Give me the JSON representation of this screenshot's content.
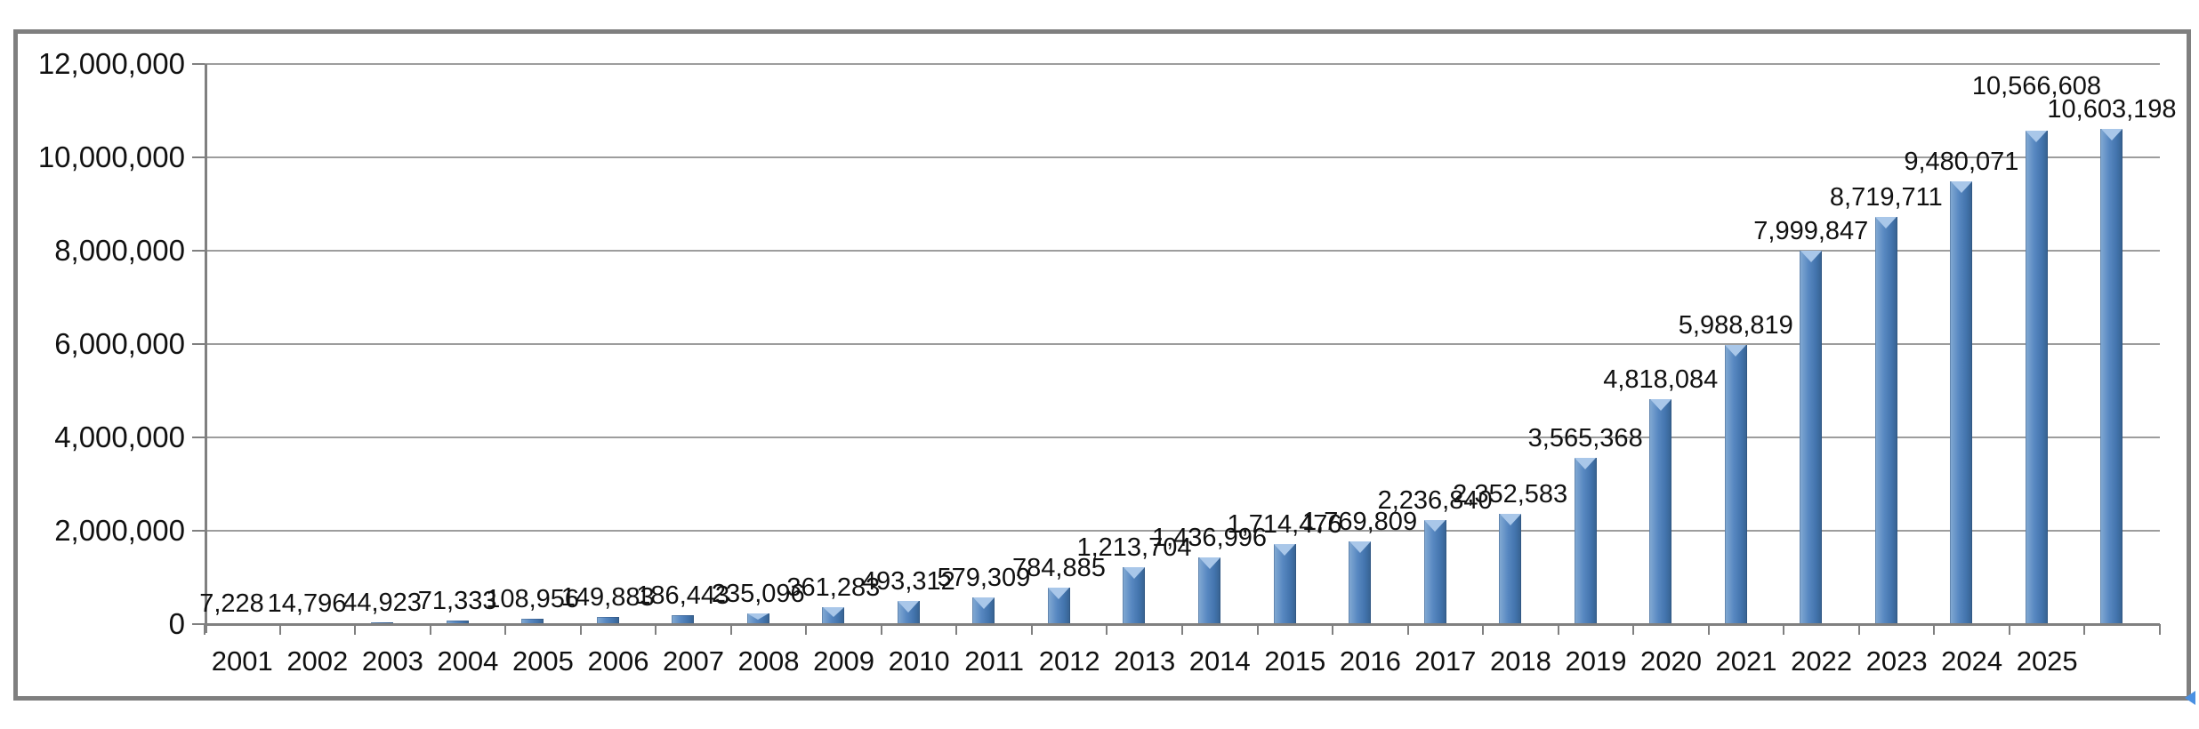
{
  "chart_data": {
    "type": "bar",
    "title": "",
    "xlabel": "",
    "ylabel": "",
    "legend": "none",
    "grid": true,
    "ylim": [
      0,
      12000000
    ],
    "ytick_interval": 2000000,
    "ytick_labels": [
      "0",
      "2,000,000",
      "4,000,000",
      "6,000,000",
      "8,000,000",
      "10,000,000",
      "12,000,000"
    ],
    "categories": [
      "2001",
      "2002",
      "2003",
      "2004",
      "2005",
      "2006",
      "2007",
      "2008",
      "2009",
      "2010",
      "2011",
      "2012",
      "2013",
      "2014",
      "2015",
      "2016",
      "2017",
      "2018",
      "2019",
      "2020",
      "2021",
      "2022",
      "2023",
      "2024",
      "2025",
      ""
    ],
    "values": [
      7228,
      14796,
      44923,
      71333,
      108956,
      149883,
      186443,
      235096,
      361283,
      493312,
      579309,
      784885,
      1213704,
      1436996,
      1714476,
      1769809,
      2236840,
      2352583,
      3565368,
      4818084,
      5988819,
      7999847,
      8719711,
      9480071,
      10566608,
      10603198
    ],
    "data_labels": [
      "7,228",
      "14,796",
      "44,923",
      "71,333",
      "108,956",
      "149,883",
      "186,443",
      "235,096",
      "361,283",
      "493,312",
      "579,309",
      "784,885",
      "1,213,704",
      "1,436,996",
      "1,714,476",
      "1,769,809",
      "2,236,840",
      "2,352,583",
      "3,565,368",
      "4,818,084",
      "5,988,819",
      "7,999,847",
      "8,719,711",
      "9,480,071",
      "10,566,608",
      "10,603,198"
    ],
    "raised_label_index": 24,
    "bar_color": "#4f81bd",
    "bar_highlight_color": "#a9c7e9",
    "gridline_color": "#9d9d9d",
    "axis_color": "#808080",
    "frame_color": "#7f7f7f",
    "text_color": "#111111",
    "corner_marker_color": "#4a90e2"
  }
}
